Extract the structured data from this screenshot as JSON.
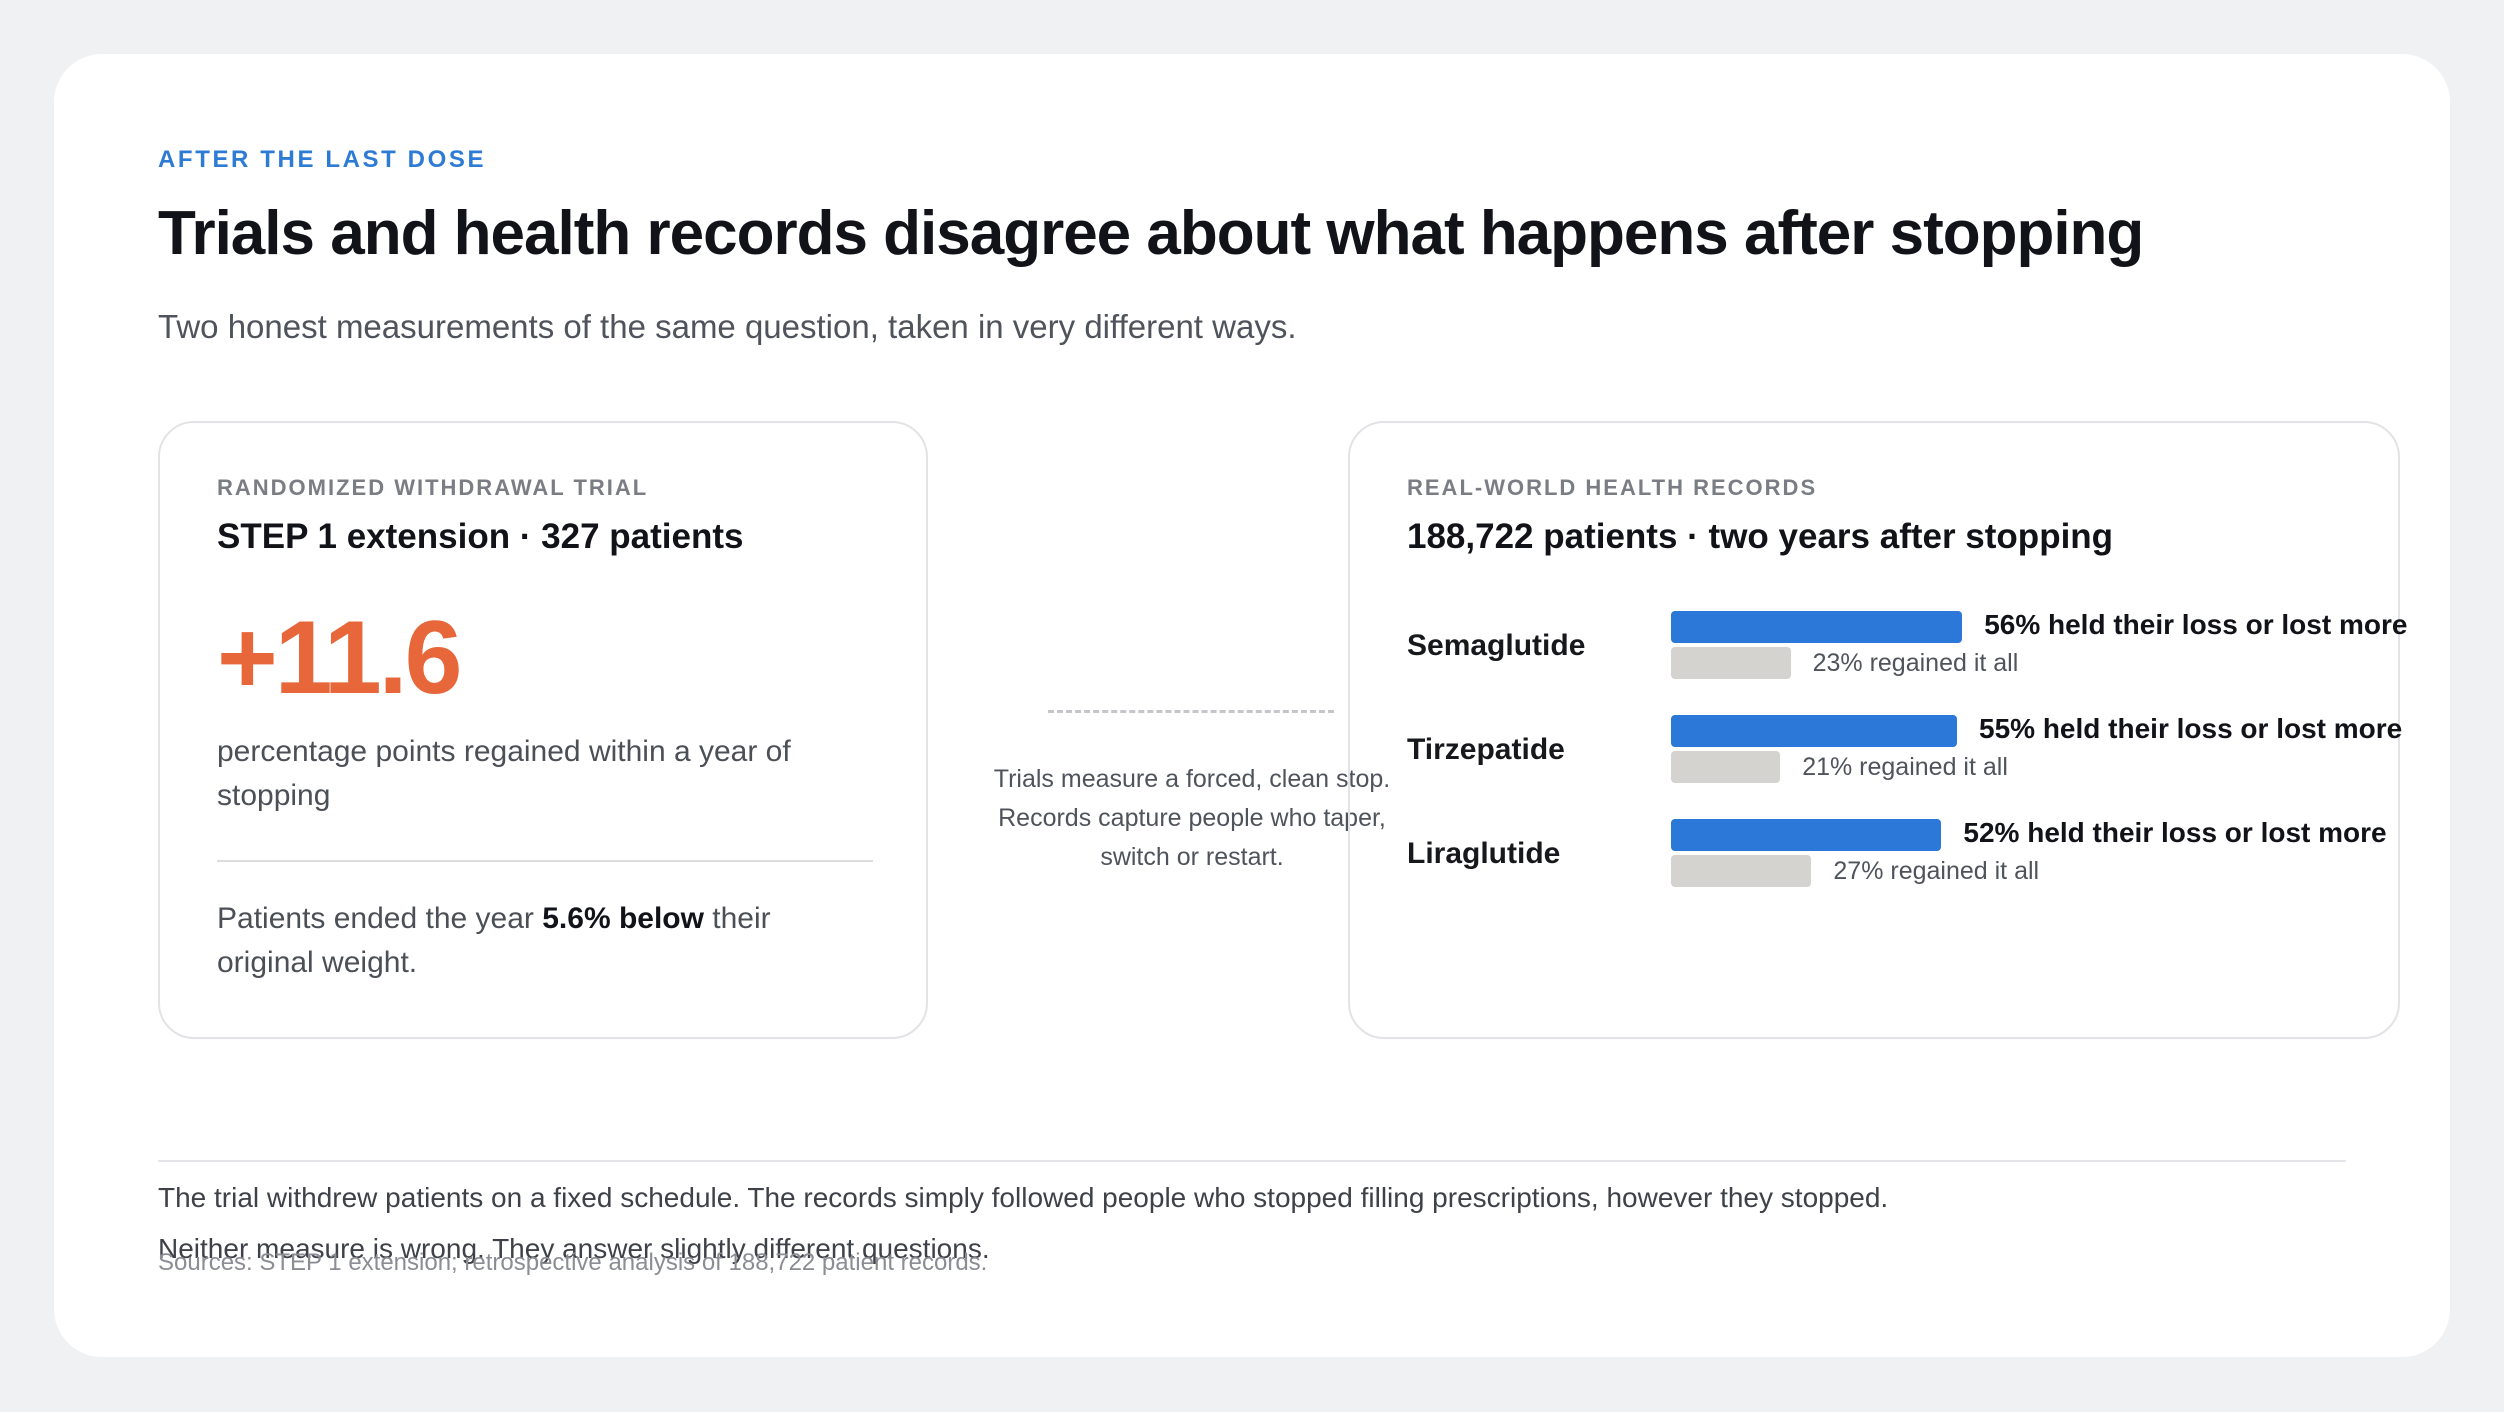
{
  "header": {
    "eyebrow": "AFTER THE LAST DOSE",
    "title": "Trials and health records disagree about what happens after stopping",
    "subtitle": "Two honest measurements of the same question, taken in very different ways."
  },
  "trial": {
    "eyebrow": "RANDOMIZED WITHDRAWAL TRIAL",
    "title": "STEP 1 extension · 327 patients",
    "big_number": "+11.6",
    "big_caption": "percentage points regained within a year of stopping",
    "note_prefix": "Patients ended the year ",
    "note_bold": "5.6% below",
    "note_suffix": " their original weight."
  },
  "connector": {
    "text": "Trials measure a forced, clean stop. Records capture people who taper, switch or restart."
  },
  "records": {
    "eyebrow": "REAL-WORLD HEALTH RECORDS",
    "title": "188,722 patients · two years after stopping",
    "rows": [
      {
        "drug": "Semaglutide",
        "held_pct": 56,
        "regained_pct": 23,
        "held_label": "56% held their loss or lost more",
        "regained_label": "23% regained it all"
      },
      {
        "drug": "Tirzepatide",
        "held_pct": 55,
        "regained_pct": 21,
        "held_label": "55% held their loss or lost more",
        "regained_label": "21% regained it all"
      },
      {
        "drug": "Liraglutide",
        "held_pct": 52,
        "regained_pct": 27,
        "held_label": "52% held their loss or lost more",
        "regained_label": "27% regained it all"
      }
    ]
  },
  "colors": {
    "accent_blue": "#2c78d8",
    "accent_orange": "#e8673a",
    "regain_gray": "#d4d3cf"
  },
  "footer": {
    "line1": "The trial withdrew patients on a fixed schedule. The records simply followed people who stopped filling prescriptions, however they stopped.",
    "line2": "Neither measure is wrong. They answer slightly different questions.",
    "sources": "Sources: STEP 1 extension; retrospective analysis of 188,722 patient records."
  }
}
